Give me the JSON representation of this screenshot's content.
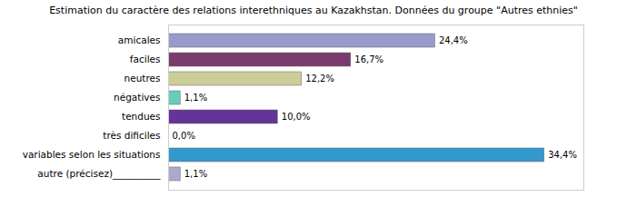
{
  "chart_data": {
    "type": "bar",
    "orientation": "horizontal",
    "title": "Estimation du caractère des relations interethniques au Kazakhstan. Données du groupe \"Autres ethnies\"",
    "categories": [
      "amicales",
      "faciles",
      "neutres",
      "négatives",
      "tendues",
      "très dificiles",
      "variables selon les situations",
      "autre (précisez)__________"
    ],
    "values": [
      24.4,
      16.7,
      12.2,
      1.1,
      10.0,
      0.0,
      34.4,
      1.1
    ],
    "value_labels": [
      "24,4%",
      "16,7%",
      "12,2%",
      "1,1%",
      "10,0%",
      "0,0%",
      "34,4%",
      "1,1%"
    ],
    "colors": [
      "#9999cc",
      "#7b3b6e",
      "#cccc99",
      "#66ccbb",
      "#663399",
      "#f0f0f0",
      "#3399cc",
      "#aaaacc"
    ],
    "xlim": [
      0,
      38
    ],
    "data_labels": true,
    "tick_labels": "y",
    "grid": false
  }
}
